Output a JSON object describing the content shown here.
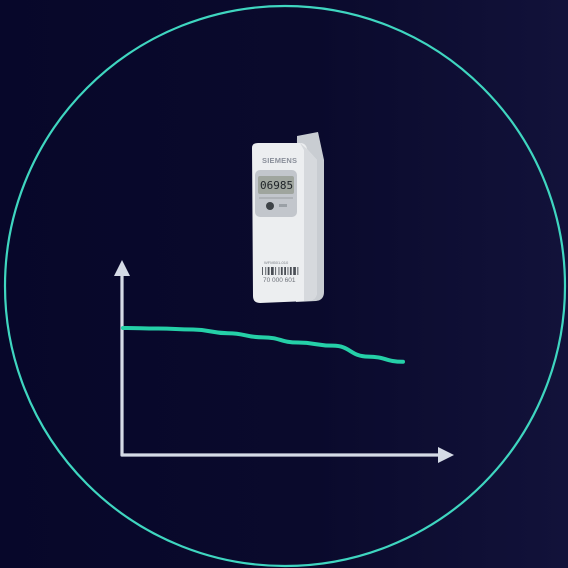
{
  "colors": {
    "background": "#07072a",
    "circle_outline": "#3fd6c0",
    "curve": "#25d0a8",
    "axes": "#d5dbe6",
    "device_body": "#eceef0"
  },
  "device": {
    "brand": "SIEMENS",
    "display_reading": "06985",
    "model_text": "WFM501-010",
    "serial": "70 000 601"
  },
  "trend_line": {
    "type": "line",
    "y": [
      1.0,
      0.99,
      0.97,
      0.9,
      0.82,
      0.72,
      0.66,
      0.45,
      0.35
    ]
  }
}
